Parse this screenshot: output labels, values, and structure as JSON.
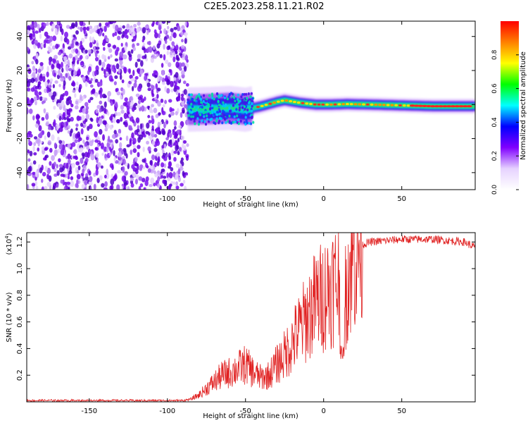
{
  "page": {
    "title": "C2E5.2023.258.11.21.R02"
  },
  "chart_data": [
    {
      "type": "heatmap",
      "xlabel": "Height of straight line (km)",
      "ylabel": "Frequency (Hz)",
      "xlim": [
        -190,
        97
      ],
      "ylim": [
        -50,
        49
      ],
      "xticks": [
        -150,
        -100,
        -50,
        0,
        50
      ],
      "yticks": [
        -40,
        -20,
        0,
        20,
        40
      ],
      "colorbar": {
        "label": "Normalized spectral amplitude",
        "range": [
          0,
          1
        ],
        "ticks": [
          0.0,
          0.2,
          0.4,
          0.6,
          0.8
        ],
        "tick_labels": [
          "0.0",
          "0.2",
          "0.4",
          "0.6",
          "0.8"
        ],
        "colors": [
          "#ffffff",
          "#e6d2ff",
          "#8000ff",
          "#0000ff",
          "#00ffff",
          "#00ff00",
          "#ffff00",
          "#ff8000",
          "#ff0000"
        ]
      },
      "noise_region_x": [
        -190,
        -87
      ],
      "signal_centerline": [
        {
          "x": -87,
          "y": -3
        },
        {
          "x": -70,
          "y": -2.5
        },
        {
          "x": -60,
          "y": -2
        },
        {
          "x": -50,
          "y": -3
        },
        {
          "x": -40,
          "y": -1
        },
        {
          "x": -30,
          "y": 1.5
        },
        {
          "x": -25,
          "y": 2.5
        },
        {
          "x": -15,
          "y": 1
        },
        {
          "x": -5,
          "y": 0
        },
        {
          "x": 5,
          "y": 0
        },
        {
          "x": 15,
          "y": 0.3
        },
        {
          "x": 30,
          "y": 0
        },
        {
          "x": 50,
          "y": -0.5
        },
        {
          "x": 70,
          "y": -1
        },
        {
          "x": 97,
          "y": -1
        }
      ]
    },
    {
      "type": "line",
      "xlabel": "Height of straight line (km)",
      "ylabel": "SNR (10 * v/v)",
      "yscale_label": "(x10",
      "yscale_exp": "4",
      "yscale_close": ")",
      "xlim": [
        -190,
        97
      ],
      "ylim": [
        0,
        1.27
      ],
      "xticks": [
        -150,
        -100,
        -50,
        0,
        50
      ],
      "yticks": [
        0.2,
        0.4,
        0.6,
        0.8,
        1.0,
        1.2
      ],
      "ytick_labels": [
        "0.2",
        "0.4",
        "0.6",
        "0.8",
        "1.0",
        "1.2"
      ],
      "series": [
        {
          "color": "#e02020",
          "x": [
            -190,
            -160,
            -130,
            -100,
            -90,
            -85,
            -80,
            -75,
            -70,
            -65,
            -60,
            -55,
            -50,
            -45,
            -40,
            -35,
            -30,
            -25,
            -20,
            -15,
            -10,
            -5,
            0,
            5,
            10,
            12,
            15,
            20,
            25,
            30,
            40,
            50,
            60,
            70,
            80,
            90,
            97
          ],
          "y": [
            0.01,
            0.01,
            0.01,
            0.01,
            0.01,
            0.02,
            0.05,
            0.1,
            0.15,
            0.2,
            0.22,
            0.25,
            0.28,
            0.22,
            0.18,
            0.2,
            0.28,
            0.35,
            0.45,
            0.55,
            0.65,
            0.75,
            0.8,
            0.88,
            0.9,
            0.45,
            0.95,
            1.1,
            1.18,
            1.2,
            1.21,
            1.22,
            1.22,
            1.22,
            1.21,
            1.2,
            1.16
          ]
        }
      ]
    }
  ]
}
